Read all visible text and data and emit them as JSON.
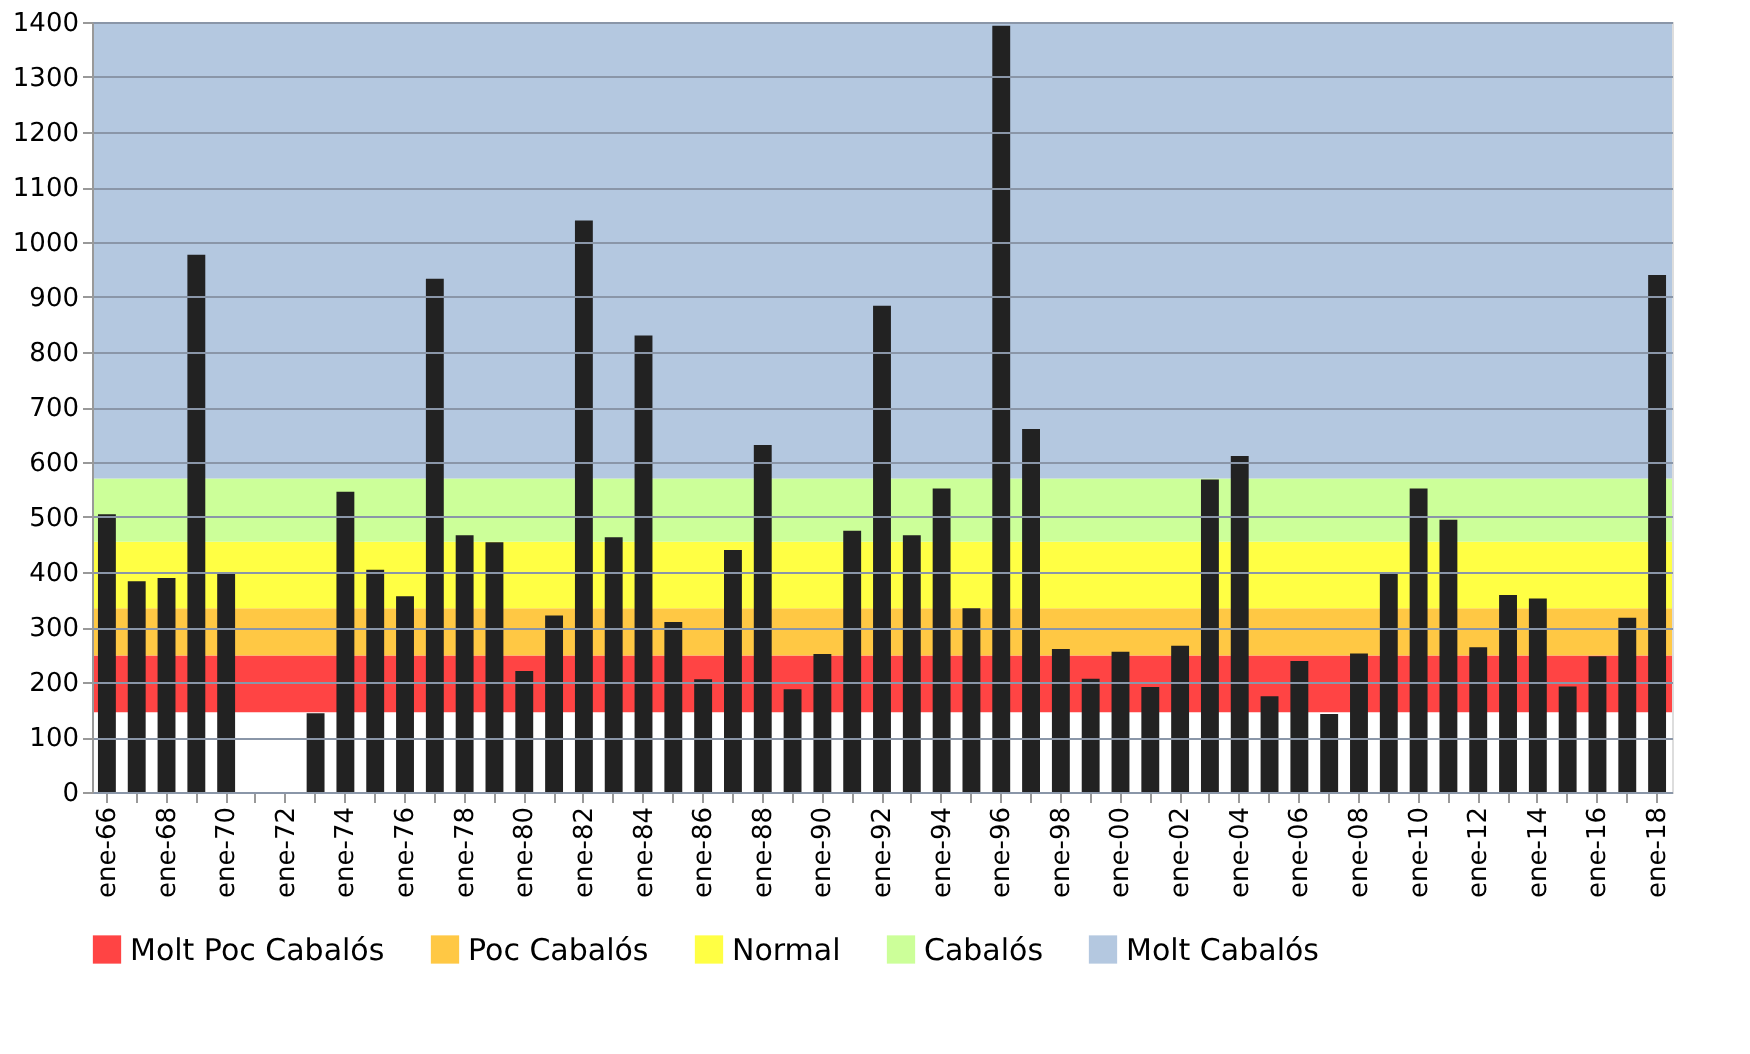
{
  "chart_data": {
    "type": "bar",
    "categories": [
      "ene-66",
      null,
      "ene-68",
      null,
      "ene-70",
      null,
      "ene-72",
      null,
      "ene-74",
      null,
      "ene-76",
      null,
      "ene-78",
      null,
      "ene-80",
      null,
      "ene-82",
      null,
      "ene-84",
      null,
      "ene-86",
      null,
      "ene-88",
      null,
      "ene-90",
      null,
      "ene-92",
      null,
      "ene-94",
      null,
      "ene-96",
      null,
      "ene-98",
      null,
      "ene-00",
      null,
      "ene-02",
      null,
      "ene-04",
      null,
      "ene-06",
      null,
      "ene-08",
      null,
      "ene-10",
      null,
      "ene-12",
      null,
      "ene-14",
      null,
      "ene-16",
      null,
      "ene-18"
    ],
    "values": [
      505,
      383,
      389,
      977,
      399,
      null,
      null,
      143,
      546,
      404,
      356,
      933,
      467,
      454,
      220,
      321,
      1039,
      463,
      830,
      309,
      205,
      440,
      631,
      187,
      251,
      475,
      884,
      467,
      552,
      334,
      1393,
      660,
      260,
      206,
      255,
      191,
      266,
      568,
      611,
      174,
      238,
      142,
      252,
      399,
      552,
      495,
      263,
      358,
      352,
      192,
      247,
      317,
      940
    ],
    "color": "#222222",
    "ylim": [
      0,
      1400
    ],
    "yticks": [
      0,
      100,
      200,
      300,
      400,
      500,
      600,
      700,
      800,
      900,
      1000,
      1100,
      1200,
      1300,
      1400
    ],
    "grid": "y",
    "legend": "bottom",
    "bands": [
      {
        "axis": "y",
        "from": 145,
        "to": 248,
        "label": "Molt Poc Cabalós",
        "color": "#ff4444"
      },
      {
        "axis": "y",
        "from": 248,
        "to": 334,
        "label": "Poc Cabalós",
        "color": "#ffc844"
      },
      {
        "axis": "y",
        "from": 334,
        "to": 455,
        "label": "Normal",
        "color": "#ffff44"
      },
      {
        "axis": "y",
        "from": 455,
        "to": 570,
        "label": "Cabalós",
        "color": "#ccff99"
      },
      {
        "axis": "y",
        "from": 570,
        "to": 1400,
        "label": "Molt Cabalós",
        "color": "#b4c8e0"
      }
    ]
  }
}
